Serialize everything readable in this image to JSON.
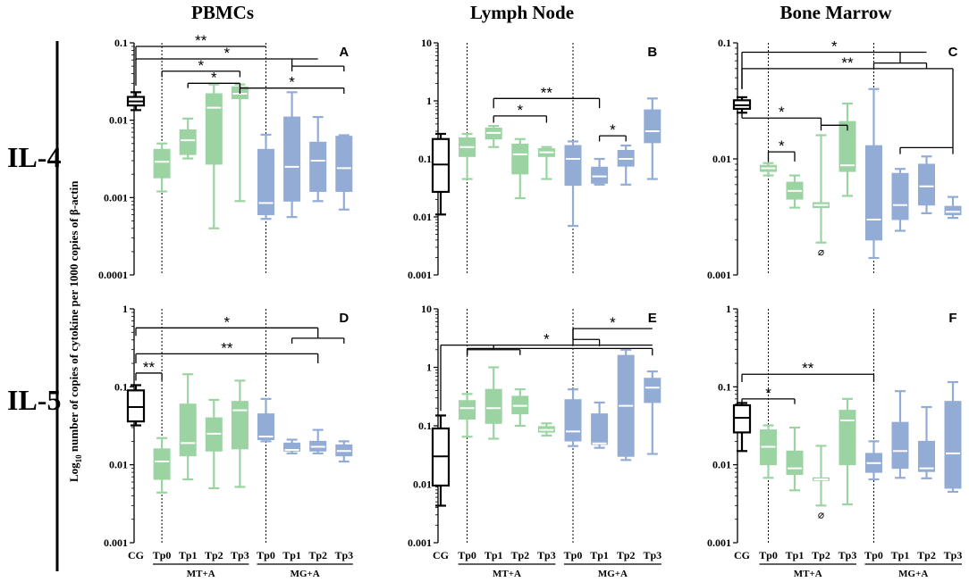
{
  "figure": {
    "column_titles": [
      "PBMCs",
      "Lymph Node",
      "Bone Marrow"
    ],
    "row_labels": [
      "IL-4",
      "IL-5"
    ],
    "y_axis_label_main": "Log",
    "y_axis_label_sub": "10",
    "y_axis_label_rest": " number of copies of cytokine per 1000 copies of β-actin",
    "x_categories": [
      "CG",
      "Tp0",
      "Tp1",
      "Tp2",
      "Tp3",
      "Tp0",
      "Tp1",
      "Tp2",
      "Tp3"
    ],
    "group_labels": [
      "MT+A",
      "MG+A"
    ],
    "colors": {
      "cg": "#000000",
      "mt": "#9bd4a2",
      "mg": "#93acd6",
      "median": "#ffffff"
    },
    "below_range_symbol": "⌀"
  },
  "chart_data": [
    {
      "panel": "A",
      "title": "PBMCs",
      "cytokine": "IL-4",
      "type": "boxplot",
      "yscale": "log",
      "ylim": [
        0.0001,
        0.1
      ],
      "yticks": [
        "0.0001",
        "0.001",
        "0.01",
        "0.1"
      ],
      "ytick_values": [
        0.0001,
        0.001,
        0.01,
        0.1
      ],
      "boxes": [
        {
          "cat": "CG",
          "min": 0.0135,
          "q1": 0.0155,
          "med": 0.0175,
          "q3": 0.02,
          "max": 0.023
        },
        {
          "cat": "MT Tp0",
          "min": 0.0012,
          "q1": 0.0018,
          "med": 0.0029,
          "q3": 0.0042,
          "max": 0.005
        },
        {
          "cat": "MT Tp1",
          "min": 0.0032,
          "q1": 0.0036,
          "med": 0.0055,
          "q3": 0.0075,
          "max": 0.0105
        },
        {
          "cat": "MT Tp2",
          "min": 0.0004,
          "q1": 0.0027,
          "med": 0.0145,
          "q3": 0.022,
          "max": 0.029
        },
        {
          "cat": "MT Tp3",
          "min": 0.0009,
          "q1": 0.019,
          "med": 0.022,
          "q3": 0.027,
          "max": 0.029
        },
        {
          "cat": "MG Tp0",
          "min": 0.00053,
          "q1": 0.0006,
          "med": 0.00085,
          "q3": 0.0042,
          "max": 0.0065
        },
        {
          "cat": "MG Tp1",
          "min": 0.00056,
          "q1": 0.0009,
          "med": 0.0025,
          "q3": 0.011,
          "max": 0.023
        },
        {
          "cat": "MG Tp2",
          "min": 0.0009,
          "q1": 0.0012,
          "med": 0.003,
          "q3": 0.0052,
          "max": 0.011
        },
        {
          "cat": "MG Tp3",
          "min": 0.0007,
          "q1": 0.0012,
          "med": 0.0024,
          "q3": 0.0062,
          "max": 0.0064
        }
      ],
      "brackets": [
        {
          "x1": "CG",
          "x2": "MG Tp0",
          "y": 0.09,
          "label": "**",
          "left_drop": 0.06
        },
        {
          "x1": "CG",
          "x2": "MG Tp2",
          "y": 0.062,
          "label": "*",
          "left_drop": 0.028,
          "stem": "MG Tp1",
          "right_arm": [
            "MG Tp1",
            "MG Tp3"
          ],
          "right_y": 0.05
        },
        {
          "x1": "MT Tp0",
          "x2": "MT Tp3",
          "y": 0.043,
          "label": "*",
          "tick_left": 0.036,
          "tick_right": 0.036
        },
        {
          "x1": "MT Tp1",
          "x2": "MT Tp3",
          "y": 0.03,
          "label": "*",
          "tick_left": 0.026,
          "tick_right": 0.026
        },
        {
          "x1": "MT Tp3",
          "x2": "MG Tp3",
          "y": 0.026,
          "label": "*",
          "tick_left": 0.022,
          "tick_right": 0.022
        }
      ]
    },
    {
      "panel": "B",
      "title": "Lymph Node",
      "cytokine": "IL-4",
      "type": "boxplot",
      "yscale": "log",
      "ylim": [
        0.001,
        10
      ],
      "yticks": [
        "0.001",
        "0.01",
        "0.1",
        "1",
        "10"
      ],
      "ytick_values": [
        0.001,
        0.01,
        0.1,
        1,
        10
      ],
      "boxes": [
        {
          "cat": "CG",
          "min": 0.011,
          "q1": 0.027,
          "med": 0.08,
          "q3": 0.22,
          "max": 0.27
        },
        {
          "cat": "MT Tp0",
          "min": 0.045,
          "q1": 0.11,
          "med": 0.16,
          "q3": 0.23,
          "max": 0.27
        },
        {
          "cat": "MT Tp1",
          "min": 0.16,
          "q1": 0.22,
          "med": 0.28,
          "q3": 0.34,
          "max": 0.37
        },
        {
          "cat": "MT Tp2",
          "min": 0.021,
          "q1": 0.055,
          "med": 0.12,
          "q3": 0.18,
          "max": 0.22
        },
        {
          "cat": "MT Tp3",
          "min": 0.045,
          "q1": 0.11,
          "med": 0.13,
          "q3": 0.15,
          "max": 0.16
        },
        {
          "cat": "MG Tp0",
          "min": 0.007,
          "q1": 0.035,
          "med": 0.1,
          "q3": 0.17,
          "max": 0.2
        },
        {
          "cat": "MG Tp1",
          "min": 0.036,
          "q1": 0.038,
          "med": 0.05,
          "q3": 0.072,
          "max": 0.1
        },
        {
          "cat": "MG Tp2",
          "min": 0.036,
          "q1": 0.075,
          "med": 0.1,
          "q3": 0.14,
          "max": 0.17
        },
        {
          "cat": "MG Tp3",
          "min": 0.045,
          "q1": 0.19,
          "med": 0.3,
          "q3": 0.7,
          "max": 1.1
        }
      ],
      "brackets": [
        {
          "x1": "MT Tp1",
          "x2": "MG Tp1",
          "y": 1.1,
          "label": "**",
          "tick_left": 0.75,
          "tick_right": 0.75
        },
        {
          "x1": "MT Tp1",
          "x2": "MT Tp3",
          "y": 0.55,
          "label": "*",
          "tick_left": 0.42,
          "tick_right": 0.42
        },
        {
          "x1": "MG Tp1",
          "x2": "MG Tp2",
          "y": 0.25,
          "label": "*",
          "tick_left": 0.2,
          "tick_right": 0.2
        }
      ]
    },
    {
      "panel": "C",
      "title": "Bone Marrow",
      "cytokine": "IL-4",
      "type": "boxplot",
      "yscale": "log",
      "ylim": [
        0.001,
        0.1
      ],
      "yticks": [
        "0.001",
        "0.01",
        "0.1"
      ],
      "ytick_values": [
        0.001,
        0.01,
        0.1
      ],
      "boxes": [
        {
          "cat": "CG",
          "min": 0.025,
          "q1": 0.027,
          "med": 0.029,
          "q3": 0.032,
          "max": 0.034
        },
        {
          "cat": "MT Tp0",
          "min": 0.0072,
          "q1": 0.0078,
          "med": 0.0083,
          "q3": 0.0088,
          "max": 0.0092
        },
        {
          "cat": "MT Tp1",
          "min": 0.0038,
          "q1": 0.0045,
          "med": 0.0053,
          "q3": 0.0063,
          "max": 0.0072
        },
        {
          "cat": "MT Tp2",
          "min": 0.0019,
          "q1": 0.0038,
          "med": 0.004,
          "q3": 0.0042,
          "max": 0.016,
          "below_range_marker": true
        },
        {
          "cat": "MT Tp3",
          "min": 0.0048,
          "q1": 0.0078,
          "med": 0.0088,
          "q3": 0.021,
          "max": 0.03
        },
        {
          "cat": "MG Tp0",
          "min": 0.0014,
          "q1": 0.002,
          "med": 0.003,
          "q3": 0.013,
          "max": 0.04
        },
        {
          "cat": "MG Tp1",
          "min": 0.0024,
          "q1": 0.003,
          "med": 0.004,
          "q3": 0.0075,
          "max": 0.0082
        },
        {
          "cat": "MG Tp2",
          "min": 0.0034,
          "q1": 0.004,
          "med": 0.0058,
          "q3": 0.009,
          "max": 0.0105
        },
        {
          "cat": "MG Tp3",
          "min": 0.0031,
          "q1": 0.0033,
          "med": 0.0035,
          "q3": 0.0039,
          "max": 0.0047
        }
      ],
      "brackets": [
        {
          "x1": "CG",
          "x2": "MG Tp2",
          "y": 0.083,
          "label": "*",
          "left_drop": 0.04,
          "stem": "MG Tp1",
          "right_arm": [
            "MG Tp0",
            "MG Tp2"
          ],
          "right_y": 0.067
        },
        {
          "x1": "CG",
          "x2": "MG Tp3",
          "y": 0.06,
          "label": "**",
          "left_drop": 0.04,
          "right_drop": 0.0125
        },
        {
          "x1": "CG",
          "x2": "MT Tp2",
          "y": 0.0225,
          "label": "*",
          "left_drop": 0.025,
          "stem": "MT Tp2",
          "right_arm": [
            "MT Tp2",
            "MT Tp3"
          ],
          "right_y": 0.0195
        },
        {
          "x1": "MT Tp0",
          "x2": "MT Tp1",
          "y": 0.0115,
          "label": "*",
          "tick_left": 0.0095,
          "tick_right": 0.0095
        },
        {
          "x1": "MG Tp1",
          "x2": "MG Tp3",
          "y": 0.0125,
          "label": "",
          "tick_left": 0.011,
          "tick_right": 0.011
        }
      ]
    },
    {
      "panel": "D",
      "title": "PBMCs",
      "cytokine": "IL-5",
      "type": "boxplot",
      "yscale": "log",
      "ylim": [
        0.001,
        1
      ],
      "yticks": [
        "0.001",
        "0.01",
        "0.1",
        "1"
      ],
      "ytick_values": [
        0.001,
        0.01,
        0.1,
        1
      ],
      "boxes": [
        {
          "cat": "CG",
          "min": 0.032,
          "q1": 0.036,
          "med": 0.055,
          "q3": 0.09,
          "max": 0.105
        },
        {
          "cat": "MT Tp0",
          "min": 0.0044,
          "q1": 0.0065,
          "med": 0.011,
          "q3": 0.016,
          "max": 0.022
        },
        {
          "cat": "MT Tp1",
          "min": 0.0065,
          "q1": 0.013,
          "med": 0.019,
          "q3": 0.06,
          "max": 0.145
        },
        {
          "cat": "MT Tp2",
          "min": 0.005,
          "q1": 0.015,
          "med": 0.025,
          "q3": 0.04,
          "max": 0.068
        },
        {
          "cat": "MT Tp3",
          "min": 0.0052,
          "q1": 0.016,
          "med": 0.05,
          "q3": 0.065,
          "max": 0.12
        },
        {
          "cat": "MG Tp0",
          "min": 0.02,
          "q1": 0.021,
          "med": 0.023,
          "q3": 0.045,
          "max": 0.07
        },
        {
          "cat": "MG Tp1",
          "min": 0.014,
          "q1": 0.015,
          "med": 0.0155,
          "q3": 0.019,
          "max": 0.021
        },
        {
          "cat": "MG Tp2",
          "min": 0.014,
          "q1": 0.015,
          "med": 0.017,
          "q3": 0.02,
          "max": 0.028
        },
        {
          "cat": "MG Tp3",
          "min": 0.011,
          "q1": 0.013,
          "med": 0.015,
          "q3": 0.018,
          "max": 0.02
        }
      ],
      "brackets": [
        {
          "x1": "CG",
          "x2": "MG Tp2",
          "y": 0.57,
          "label": "*",
          "left_drop": 0.45,
          "stem": "MG Tp2",
          "right_arm": [
            "MG Tp1",
            "MG Tp3"
          ],
          "right_y": 0.42
        },
        {
          "x1": "CG",
          "x2": "MG Tp2",
          "y": 0.265,
          "label": "**",
          "left_drop": 0.2,
          "right_drop": 0.2
        },
        {
          "x1": "CG",
          "x2": "MT Tp0",
          "y": 0.15,
          "label": "**",
          "tick_left": 0.12,
          "tick_right": 0.12
        }
      ]
    },
    {
      "panel": "E",
      "title": "Lymph Node",
      "cytokine": "IL-5",
      "type": "boxplot",
      "yscale": "log",
      "ylim": [
        0.001,
        10
      ],
      "yticks": [
        "0.001",
        "0.01",
        "0.1",
        "1",
        "10"
      ],
      "ytick_values": [
        0.001,
        0.01,
        0.1,
        1,
        10
      ],
      "boxes": [
        {
          "cat": "CG",
          "min": 0.0043,
          "q1": 0.0095,
          "med": 0.03,
          "q3": 0.09,
          "max": 0.15
        },
        {
          "cat": "MT Tp0",
          "min": 0.065,
          "q1": 0.13,
          "med": 0.2,
          "q3": 0.27,
          "max": 0.35
        },
        {
          "cat": "MT Tp1",
          "min": 0.06,
          "q1": 0.11,
          "med": 0.2,
          "q3": 0.42,
          "max": 1.0
        },
        {
          "cat": "MT Tp2",
          "min": 0.1,
          "q1": 0.16,
          "med": 0.22,
          "q3": 0.32,
          "max": 0.42
        },
        {
          "cat": "MT Tp3",
          "min": 0.068,
          "q1": 0.078,
          "med": 0.085,
          "q3": 0.097,
          "max": 0.11
        },
        {
          "cat": "MG Tp0",
          "min": 0.045,
          "q1": 0.055,
          "med": 0.08,
          "q3": 0.28,
          "max": 0.42
        },
        {
          "cat": "MG Tp1",
          "min": 0.042,
          "q1": 0.048,
          "med": 0.05,
          "q3": 0.16,
          "max": 0.25
        },
        {
          "cat": "MG Tp2",
          "min": 0.026,
          "q1": 0.03,
          "med": 0.22,
          "q3": 1.6,
          "max": 2.0
        },
        {
          "cat": "MG Tp3",
          "min": 0.033,
          "q1": 0.25,
          "med": 0.45,
          "q3": 0.65,
          "max": 0.85
        }
      ],
      "brackets": [
        {
          "x1": "CG",
          "x2": "MG Tp3",
          "y": 2.4,
          "label": "*",
          "left_drop": 0.18,
          "stem": "MT Tp1",
          "right_arm": [
            "MT Tp0",
            "MT Tp2"
          ],
          "right_y": 2.0
        },
        {
          "x1": "MT Tp0",
          "x2": "MG Tp3",
          "y": 2.1,
          "label": "",
          "tick_left": 1.6,
          "tick_right": 1.6
        },
        {
          "x1": "MG Tp0",
          "x2": "MG Tp3",
          "y": 4.6,
          "label": "*",
          "left_drop": 3.0,
          "stem": "MG Tp0",
          "right_arm": [
            "MG Tp0",
            "MG Tp1"
          ],
          "right_y": 3.0,
          "right_drop": 2.3
        }
      ]
    },
    {
      "panel": "F",
      "title": "Bone Marrow",
      "cytokine": "IL-5",
      "type": "boxplot",
      "yscale": "log",
      "ylim": [
        0.001,
        1
      ],
      "yticks": [
        "0.001",
        "0.01",
        "0.1",
        "1"
      ],
      "ytick_values": [
        0.001,
        0.01,
        0.1,
        1
      ],
      "boxes": [
        {
          "cat": "CG",
          "min": 0.015,
          "q1": 0.026,
          "med": 0.04,
          "q3": 0.058,
          "max": 0.062
        },
        {
          "cat": "MT Tp0",
          "min": 0.0068,
          "q1": 0.01,
          "med": 0.017,
          "q3": 0.028,
          "max": 0.032
        },
        {
          "cat": "MT Tp1",
          "min": 0.0047,
          "q1": 0.0075,
          "med": 0.009,
          "q3": 0.015,
          "max": 0.03
        },
        {
          "cat": "MT Tp2",
          "min": 0.003,
          "q1": 0.0063,
          "med": 0.0065,
          "q3": 0.0068,
          "max": 0.0175,
          "below_range_marker": true
        },
        {
          "cat": "MT Tp3",
          "min": 0.0031,
          "q1": 0.01,
          "med": 0.037,
          "q3": 0.05,
          "max": 0.07
        },
        {
          "cat": "MG Tp0",
          "min": 0.0065,
          "q1": 0.008,
          "med": 0.0105,
          "q3": 0.014,
          "max": 0.02
        },
        {
          "cat": "MG Tp1",
          "min": 0.0068,
          "q1": 0.009,
          "med": 0.015,
          "q3": 0.035,
          "max": 0.088
        },
        {
          "cat": "MG Tp2",
          "min": 0.0067,
          "q1": 0.0082,
          "med": 0.009,
          "q3": 0.02,
          "max": 0.055
        },
        {
          "cat": "MG Tp3",
          "min": 0.0045,
          "q1": 0.005,
          "med": 0.014,
          "q3": 0.065,
          "max": 0.115
        }
      ],
      "brackets": [
        {
          "x1": "CG",
          "x2": "MG Tp0",
          "y": 0.145,
          "label": "**",
          "tick_left": 0.115,
          "tick_right": 0.115
        },
        {
          "x1": "CG",
          "x2": "MT Tp1",
          "y": 0.07,
          "label": "*",
          "tick_left": 0.06,
          "tick_right": 0.06
        }
      ]
    }
  ]
}
